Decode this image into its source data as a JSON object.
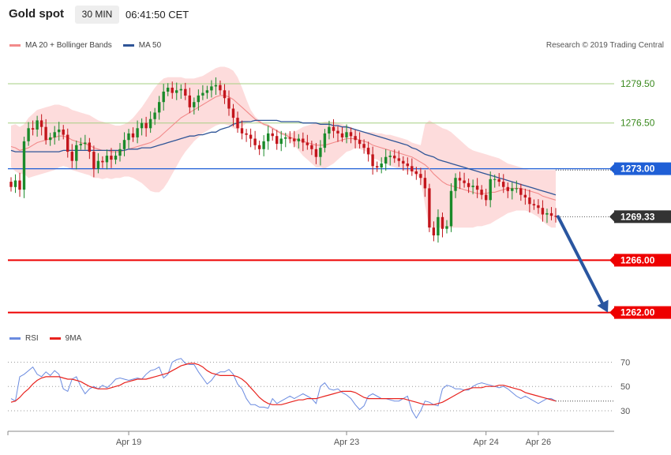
{
  "header": {
    "title": "Gold spot",
    "timeframe": "30 MIN",
    "time": "06:41:50 CET"
  },
  "legend_main": [
    {
      "label": "MA 20 + Bollinger Bands",
      "color": "#f28a8a"
    },
    {
      "label": "MA 50",
      "color": "#2f5597"
    }
  ],
  "legend_rsi": [
    {
      "label": "RSI",
      "color": "#6b8be0"
    },
    {
      "label": "9MA",
      "color": "#e8231e"
    }
  ],
  "copyright": "Research © 2019 Trading Central",
  "colors": {
    "bull": "#1a8a2a",
    "bear": "#c3151c",
    "support": "#ee0000",
    "pivot": "#1f5fd6",
    "last": "#333333",
    "resistance_line": "#a6cf82",
    "resistance_text": "#3b8a1f",
    "band_fill": "#fdd8d8",
    "ma20": "#f28a8a",
    "ma50": "#2f5597",
    "arrow": "#2a56a0"
  },
  "chart_data": [
    {
      "type": "candlestick",
      "title": "Gold spot",
      "ylim": [
        1259.8,
        1281.8
      ],
      "x_ticks": [
        "Apr 19",
        "Apr 23",
        "Apr 24",
        "Apr 26"
      ],
      "levels": [
        {
          "label": "1279.50",
          "value": 1279.5,
          "kind": "resistance"
        },
        {
          "label": "1276.50",
          "value": 1276.5,
          "kind": "resistance"
        },
        {
          "label": "1273.00",
          "value": 1273.0,
          "kind": "pivot"
        },
        {
          "label": "1269.33",
          "value": 1269.33,
          "kind": "last"
        },
        {
          "label": "1266.00",
          "value": 1266.0,
          "kind": "support"
        },
        {
          "label": "1262.00",
          "value": 1262.0,
          "kind": "support"
        }
      ],
      "forecast_arrow": {
        "from": 1269.33,
        "to": 1262.0
      },
      "close": [
        1271.6,
        1272.1,
        1271.4,
        1275.1,
        1276.1,
        1276.0,
        1276.7,
        1276.2,
        1275.2,
        1275.4,
        1275.8,
        1276.0,
        1275.6,
        1274.3,
        1273.6,
        1274.8,
        1274.9,
        1275.0,
        1274.3,
        1273.0,
        1273.6,
        1273.5,
        1274.0,
        1273.7,
        1274.0,
        1274.5,
        1275.2,
        1275.7,
        1275.4,
        1276.1,
        1276.5,
        1276.1,
        1276.8,
        1277.3,
        1278.1,
        1278.9,
        1279.2,
        1278.8,
        1279.0,
        1279.1,
        1278.6,
        1277.7,
        1278.1,
        1278.6,
        1278.8,
        1279.0,
        1279.3,
        1279.4,
        1279.0,
        1278.4,
        1277.6,
        1276.9,
        1276.1,
        1275.7,
        1275.6,
        1275.3,
        1274.8,
        1274.5,
        1275.1,
        1275.7,
        1275.5,
        1274.9,
        1275.3,
        1275.4,
        1275.3,
        1275.1,
        1275.3,
        1275.0,
        1274.8,
        1274.5,
        1273.9,
        1274.6,
        1275.7,
        1276.2,
        1275.9,
        1275.7,
        1275.4,
        1275.8,
        1275.5,
        1275.2,
        1274.9,
        1274.6,
        1274.1,
        1273.2,
        1273.1,
        1273.4,
        1273.9,
        1274.0,
        1273.8,
        1273.6,
        1273.4,
        1273.2,
        1272.8,
        1272.6,
        1272.3,
        1271.5,
        1268.5,
        1267.9,
        1269.3,
        1268.4,
        1268.6,
        1271.3,
        1272.3,
        1272.1,
        1271.9,
        1271.6,
        1271.7,
        1271.4,
        1271.0,
        1270.6,
        1272.2,
        1272.2,
        1272.0,
        1271.6,
        1271.3,
        1271.5,
        1271.5,
        1271.0,
        1270.8,
        1270.3,
        1270.2,
        1270.0,
        1269.5,
        1269.6,
        1269.4,
        1269.33
      ],
      "open": [
        1272.0,
        1271.6,
        1272.1,
        1271.4,
        1275.1,
        1276.1,
        1276.0,
        1276.7,
        1276.2,
        1275.2,
        1275.4,
        1275.8,
        1276.0,
        1275.6,
        1274.3,
        1273.6,
        1274.8,
        1274.9,
        1275.0,
        1274.3,
        1273.0,
        1273.6,
        1273.5,
        1274.0,
        1273.7,
        1274.0,
        1274.5,
        1275.2,
        1275.7,
        1275.4,
        1276.1,
        1276.5,
        1276.1,
        1276.8,
        1277.3,
        1278.1,
        1278.9,
        1279.2,
        1278.8,
        1279.0,
        1279.1,
        1278.6,
        1277.7,
        1278.1,
        1278.6,
        1278.8,
        1279.0,
        1279.3,
        1279.4,
        1279.0,
        1278.4,
        1277.6,
        1276.9,
        1276.1,
        1275.7,
        1275.6,
        1275.3,
        1274.8,
        1274.5,
        1275.1,
        1275.7,
        1275.5,
        1274.9,
        1275.3,
        1275.4,
        1275.3,
        1275.1,
        1275.3,
        1275.0,
        1274.8,
        1274.5,
        1273.9,
        1274.6,
        1275.7,
        1276.2,
        1275.9,
        1275.7,
        1275.4,
        1275.8,
        1275.5,
        1275.2,
        1274.9,
        1274.6,
        1274.1,
        1273.2,
        1273.1,
        1273.4,
        1273.9,
        1274.0,
        1273.8,
        1273.6,
        1273.4,
        1273.2,
        1272.8,
        1272.6,
        1272.3,
        1271.5,
        1268.5,
        1267.9,
        1269.3,
        1268.4,
        1268.6,
        1271.3,
        1272.3,
        1272.1,
        1271.9,
        1271.6,
        1271.7,
        1271.4,
        1271.0,
        1270.6,
        1272.2,
        1272.2,
        1272.0,
        1271.6,
        1271.3,
        1271.5,
        1271.5,
        1271.0,
        1270.8,
        1270.3,
        1270.2,
        1270.0,
        1269.5,
        1269.6,
        1269.4
      ],
      "ma20": [
        1274.7,
        1274.6,
        1274.4,
        1274.5,
        1274.6,
        1274.8,
        1275.0,
        1275.1,
        1275.2,
        1275.3,
        1275.4,
        1275.5,
        1275.5,
        1275.4,
        1275.2,
        1275.1,
        1275.0,
        1274.9,
        1274.8,
        1274.6,
        1274.5,
        1274.4,
        1274.4,
        1274.3,
        1274.3,
        1274.3,
        1274.4,
        1274.5,
        1274.6,
        1274.7,
        1274.8,
        1274.9,
        1275.0,
        1275.2,
        1275.4,
        1275.7,
        1276.0,
        1276.3,
        1276.6,
        1276.9,
        1277.1,
        1277.3,
        1277.5,
        1277.7,
        1277.9,
        1278.1,
        1278.3,
        1278.5,
        1278.6,
        1278.6,
        1278.5,
        1278.3,
        1278.0,
        1277.7,
        1277.4,
        1277.1,
        1276.8,
        1276.6,
        1276.4,
        1276.3,
        1276.1,
        1275.9,
        1275.7,
        1275.6,
        1275.4,
        1275.3,
        1275.2,
        1275.1,
        1275.0,
        1274.9,
        1274.8,
        1274.8,
        1274.8,
        1274.9,
        1275.0,
        1275.1,
        1275.2,
        1275.3,
        1275.3,
        1275.3,
        1275.2,
        1275.1,
        1275.0,
        1274.8,
        1274.7,
        1274.6,
        1274.5,
        1274.4,
        1274.3,
        1274.2,
        1274.1,
        1274.0,
        1273.9,
        1273.7,
        1273.5,
        1273.3,
        1273.0,
        1272.6,
        1272.3,
        1272.0,
        1271.8,
        1271.7,
        1271.6,
        1271.5,
        1271.4,
        1271.3,
        1271.2,
        1271.1,
        1271.1,
        1271.1,
        1271.2,
        1271.2,
        1271.3,
        1271.4,
        1271.5,
        1271.5,
        1271.5,
        1271.5,
        1271.4,
        1271.3,
        1271.2,
        1271.1,
        1270.9,
        1270.8,
        1270.7,
        1270.6
      ],
      "band_upper": [
        1276.3,
        1276.4,
        1276.2,
        1276.4,
        1276.9,
        1277.2,
        1277.5,
        1277.6,
        1277.7,
        1277.8,
        1277.9,
        1277.9,
        1277.8,
        1277.7,
        1277.5,
        1277.4,
        1277.3,
        1277.2,
        1277.1,
        1276.9,
        1276.7,
        1276.6,
        1276.5,
        1276.4,
        1276.3,
        1276.3,
        1276.4,
        1276.6,
        1276.9,
        1277.3,
        1277.7,
        1278.2,
        1278.7,
        1279.2,
        1279.6,
        1279.9,
        1280.0,
        1280.0,
        1280.0,
        1280.0,
        1279.9,
        1279.9,
        1279.9,
        1280.0,
        1280.1,
        1280.3,
        1280.5,
        1280.7,
        1280.8,
        1280.8,
        1280.7,
        1280.5,
        1280.0,
        1279.2,
        1278.3,
        1277.5,
        1277.0,
        1276.7,
        1276.5,
        1276.4,
        1276.2,
        1276.0,
        1275.8,
        1275.7,
        1275.7,
        1275.8,
        1276.0,
        1276.2,
        1276.3,
        1276.4,
        1276.5,
        1276.5,
        1276.6,
        1276.6,
        1276.6,
        1276.5,
        1276.4,
        1276.3,
        1276.2,
        1276.0,
        1275.9,
        1275.8,
        1275.8,
        1275.8,
        1275.7,
        1275.7,
        1275.6,
        1275.6,
        1275.5,
        1275.4,
        1275.3,
        1275.2,
        1275.0,
        1274.9,
        1274.8,
        1276.4,
        1276.7,
        1276.5,
        1276.3,
        1276.1,
        1276.0,
        1275.8,
        1275.5,
        1275.2,
        1274.9,
        1274.6,
        1274.4,
        1274.3,
        1274.2,
        1274.1,
        1274.0,
        1273.9,
        1273.8,
        1273.6,
        1273.4,
        1273.3,
        1273.2,
        1273.1,
        1273.0,
        1272.9,
        1272.9,
        1272.9,
        1272.9,
        1272.9,
        1272.9,
        1272.9
      ],
      "band_lower": [
        1273.1,
        1272.8,
        1272.6,
        1272.6,
        1272.3,
        1272.4,
        1272.5,
        1272.6,
        1272.7,
        1272.8,
        1272.9,
        1273.1,
        1273.2,
        1273.1,
        1272.9,
        1272.8,
        1272.7,
        1272.6,
        1272.5,
        1272.3,
        1272.3,
        1272.2,
        1272.3,
        1272.2,
        1272.3,
        1272.3,
        1272.4,
        1272.4,
        1272.3,
        1272.1,
        1271.9,
        1271.6,
        1271.3,
        1271.2,
        1271.2,
        1271.5,
        1272.0,
        1272.6,
        1273.2,
        1273.8,
        1274.3,
        1274.7,
        1275.1,
        1275.4,
        1275.7,
        1275.9,
        1276.1,
        1276.3,
        1276.4,
        1276.4,
        1276.3,
        1276.1,
        1276.0,
        1276.2,
        1276.5,
        1276.7,
        1276.6,
        1276.5,
        1276.3,
        1276.2,
        1276.0,
        1275.8,
        1275.6,
        1275.5,
        1275.1,
        1274.8,
        1274.4,
        1274.0,
        1273.7,
        1273.4,
        1273.1,
        1273.1,
        1273.0,
        1273.2,
        1273.4,
        1273.7,
        1274.0,
        1274.3,
        1274.4,
        1274.6,
        1274.5,
        1274.4,
        1274.2,
        1273.8,
        1273.7,
        1273.5,
        1273.4,
        1273.2,
        1273.1,
        1273.0,
        1272.9,
        1272.8,
        1272.8,
        1272.5,
        1272.2,
        1270.2,
        1268.5,
        1268.5,
        1268.5,
        1268.5,
        1268.5,
        1268.5,
        1268.5,
        1268.5,
        1268.5,
        1268.5,
        1268.5,
        1268.6,
        1268.6,
        1268.7,
        1268.8,
        1269.0,
        1269.2,
        1269.4,
        1269.6,
        1269.7,
        1269.8,
        1269.8,
        1269.8,
        1269.7,
        1269.5,
        1269.3,
        1269.0,
        1268.7,
        1268.5,
        1268.5
      ],
      "ma50": [
        1274.4,
        1274.3,
        1274.3,
        1274.3,
        1274.3,
        1274.3,
        1274.3,
        1274.3,
        1274.3,
        1274.3,
        1274.3,
        1274.3,
        1274.4,
        1274.4,
        1274.4,
        1274.4,
        1274.4,
        1274.4,
        1274.4,
        1274.4,
        1274.4,
        1274.4,
        1274.4,
        1274.4,
        1274.4,
        1274.4,
        1274.4,
        1274.5,
        1274.5,
        1274.5,
        1274.6,
        1274.6,
        1274.6,
        1274.7,
        1274.8,
        1274.9,
        1275.0,
        1275.1,
        1275.2,
        1275.3,
        1275.4,
        1275.5,
        1275.5,
        1275.6,
        1275.6,
        1275.7,
        1275.8,
        1275.8,
        1276.0,
        1276.1,
        1276.2,
        1276.4,
        1276.5,
        1276.6,
        1276.6,
        1276.6,
        1276.7,
        1276.7,
        1276.7,
        1276.7,
        1276.7,
        1276.7,
        1276.6,
        1276.6,
        1276.6,
        1276.6,
        1276.6,
        1276.5,
        1276.5,
        1276.5,
        1276.5,
        1276.4,
        1276.4,
        1276.4,
        1276.3,
        1276.3,
        1276.2,
        1276.2,
        1276.1,
        1276.0,
        1275.9,
        1275.8,
        1275.7,
        1275.6,
        1275.5,
        1275.4,
        1275.3,
        1275.2,
        1275.1,
        1275.0,
        1274.9,
        1274.8,
        1274.6,
        1274.5,
        1274.3,
        1274.1,
        1274.0,
        1273.9,
        1273.7,
        1273.6,
        1273.5,
        1273.4,
        1273.3,
        1273.2,
        1273.1,
        1273.0,
        1272.9,
        1272.8,
        1272.7,
        1272.6,
        1272.5,
        1272.4,
        1272.3,
        1272.2,
        1272.1,
        1272.0,
        1271.9,
        1271.8,
        1271.7,
        1271.6,
        1271.5,
        1271.4,
        1271.3,
        1271.2,
        1271.1,
        1271.0
      ]
    },
    {
      "type": "line",
      "title": "RSI",
      "ylim": [
        17,
        82
      ],
      "y_ticks": [
        30,
        50,
        70
      ],
      "series": [
        {
          "name": "RSI",
          "values": [
            40,
            38,
            58,
            60,
            63,
            66,
            60,
            58,
            62,
            59,
            63,
            60,
            48,
            46,
            56,
            58,
            50,
            44,
            48,
            50,
            48,
            51,
            49,
            52,
            56,
            57,
            56,
            55,
            56,
            57,
            56,
            60,
            63,
            64,
            66,
            57,
            60,
            70,
            72,
            73,
            69,
            68,
            68,
            62,
            57,
            52,
            55,
            60,
            62,
            62,
            64,
            60,
            52,
            48,
            40,
            35,
            35,
            33,
            33,
            32,
            40,
            36,
            38,
            40,
            42,
            40,
            42,
            44,
            42,
            40,
            36,
            50,
            53,
            48,
            47,
            48,
            45,
            43,
            40,
            35,
            31,
            34,
            42,
            44,
            42,
            40,
            40,
            39,
            38,
            38,
            40,
            42,
            30,
            24,
            30,
            38,
            37,
            35,
            34,
            48,
            51,
            50,
            48,
            48,
            47,
            47,
            50,
            52,
            53,
            52,
            51,
            50,
            49,
            50,
            48,
            45,
            42,
            40,
            42,
            40,
            38,
            36,
            38,
            40,
            40,
            38
          ]
        },
        {
          "name": "9MA",
          "values": [
            37,
            38,
            41,
            45,
            48,
            52,
            55,
            57,
            58,
            58,
            58,
            58,
            57,
            56,
            56,
            55,
            54,
            52,
            50,
            49,
            48,
            48,
            48,
            49,
            50,
            51,
            53,
            54,
            55,
            56,
            56,
            56,
            57,
            58,
            59,
            60,
            61,
            63,
            65,
            67,
            68,
            69,
            69,
            68,
            66,
            63,
            61,
            60,
            59,
            59,
            59,
            59,
            58,
            56,
            53,
            49,
            45,
            41,
            38,
            36,
            35,
            35,
            35,
            36,
            37,
            38,
            39,
            39,
            40,
            40,
            40,
            41,
            42,
            43,
            44,
            45,
            46,
            46,
            46,
            45,
            43,
            41,
            40,
            40,
            40,
            40,
            40,
            40,
            40,
            40,
            40,
            39,
            38,
            37,
            36,
            35,
            35,
            35,
            36,
            37,
            39,
            41,
            43,
            45,
            47,
            48,
            49,
            49,
            49,
            50,
            50,
            50,
            51,
            51,
            50,
            49,
            48,
            47,
            45,
            44,
            43,
            42,
            41,
            40,
            39,
            38
          ]
        }
      ],
      "x_ticks": [
        "Apr 19",
        "Apr 23",
        "Apr 24",
        "Apr 26"
      ]
    }
  ]
}
